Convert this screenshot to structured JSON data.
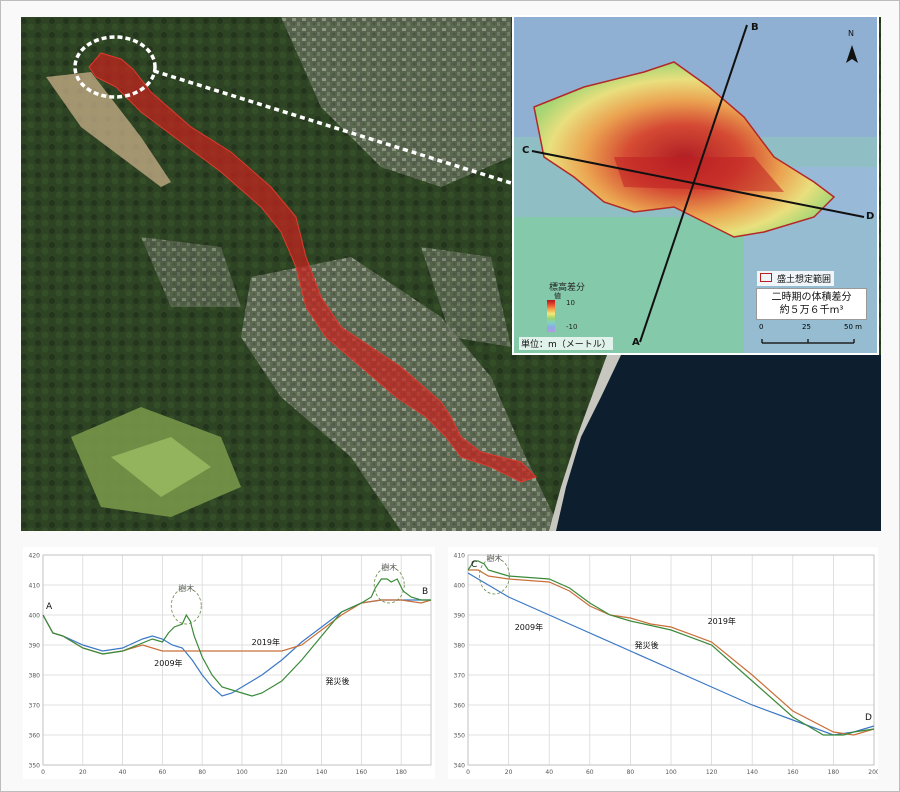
{
  "map": {
    "legend": {
      "title": "標高差分",
      "sub": "値",
      "max": "10",
      "min": "-10"
    },
    "unit_note": "単位：m（メートル）",
    "mori_label": "盛土想定範囲",
    "volume_line1": "二時期の体積差分",
    "volume_line2": "約５万６千m³",
    "scale": {
      "t0": "0",
      "t25": "25",
      "t50": "50 m"
    },
    "north": "N",
    "points": {
      "A": "A",
      "B": "B",
      "C": "C",
      "D": "D"
    },
    "colors": {
      "flow": "#c8221f",
      "embankment_outline": "#b62020",
      "section_line": "#111111"
    }
  },
  "chart_data": [
    {
      "type": "line",
      "title": "",
      "xlabel": "",
      "ylabel": "",
      "xlim": [
        0,
        195
      ],
      "ylim": [
        350,
        420
      ],
      "xticks": [
        0,
        20,
        40,
        60,
        80,
        100,
        120,
        140,
        160,
        180
      ],
      "yticks": [
        350,
        360,
        370,
        380,
        390,
        400,
        410,
        420
      ],
      "grid": true,
      "start_label": "A",
      "end_label": "B",
      "series": [
        {
          "name": "2009年",
          "color": "#3b78c4",
          "x": [
            0,
            5,
            10,
            20,
            30,
            40,
            50,
            55,
            60,
            65,
            70,
            75,
            80,
            85,
            90,
            95,
            100,
            110,
            120,
            130,
            140,
            150,
            160,
            170,
            180,
            190,
            195
          ],
          "y": [
            400,
            394,
            393,
            390,
            388,
            389,
            392,
            393,
            392,
            390,
            389,
            385,
            380,
            376,
            373,
            374,
            376,
            380,
            385,
            391,
            396,
            401,
            404,
            405,
            405,
            405,
            405
          ]
        },
        {
          "name": "2019年",
          "color": "#c8703a",
          "x": [
            0,
            5,
            10,
            20,
            30,
            40,
            50,
            60,
            70,
            80,
            100,
            120,
            130,
            140,
            150,
            160,
            170,
            180,
            190,
            195
          ],
          "y": [
            400,
            394,
            393,
            389,
            387,
            388,
            390,
            388,
            388,
            388,
            388,
            388,
            390,
            395,
            400,
            404,
            405,
            405,
            404,
            405
          ]
        },
        {
          "name": "発災後",
          "color": "#3a8a3a",
          "x": [
            0,
            5,
            10,
            20,
            30,
            40,
            55,
            60,
            63,
            66,
            70,
            72,
            74,
            76,
            80,
            85,
            90,
            100,
            105,
            110,
            120,
            130,
            140,
            150,
            160,
            165,
            167,
            170,
            173,
            175,
            178,
            181,
            185,
            190,
            195
          ],
          "y": [
            400,
            394,
            393,
            389,
            387,
            388,
            392,
            391,
            394,
            396,
            397,
            400,
            398,
            393,
            386,
            380,
            376,
            374,
            373,
            374,
            378,
            385,
            393,
            401,
            404,
            406,
            409,
            412,
            412,
            411,
            412,
            408,
            406,
            405,
            405
          ]
        }
      ],
      "annotations": [
        {
          "text": "樹木",
          "x": 72,
          "y": 408
        },
        {
          "text": "樹木",
          "x": 174,
          "y": 415
        },
        {
          "text": "2019年",
          "x": 112,
          "y": 390
        },
        {
          "text": "2009年",
          "x": 63,
          "y": 383
        },
        {
          "text": "発災後",
          "x": 148,
          "y": 377
        }
      ]
    },
    {
      "type": "line",
      "title": "",
      "xlabel": "",
      "ylabel": "",
      "xlim": [
        0,
        200
      ],
      "ylim": [
        340,
        410
      ],
      "xticks": [
        0,
        20,
        40,
        60,
        80,
        100,
        120,
        140,
        160,
        180,
        200
      ],
      "yticks": [
        340,
        350,
        360,
        370,
        380,
        390,
        400,
        410
      ],
      "grid": true,
      "start_label": "C",
      "end_label": "D",
      "series": [
        {
          "name": "2009年",
          "color": "#3b78c4",
          "x": [
            0,
            5,
            10,
            20,
            40,
            60,
            80,
            100,
            120,
            140,
            160,
            180,
            190,
            200
          ],
          "y": [
            404,
            402,
            400,
            396,
            390,
            384,
            378,
            372,
            366,
            360,
            355,
            350,
            351,
            353
          ]
        },
        {
          "name": "2019年",
          "color": "#c8703a",
          "x": [
            0,
            5,
            10,
            20,
            40,
            50,
            60,
            70,
            80,
            90,
            100,
            120,
            140,
            160,
            180,
            190,
            200
          ],
          "y": [
            405,
            405,
            403,
            402,
            401,
            398,
            393,
            390,
            389,
            387,
            386,
            381,
            370,
            358,
            351,
            350,
            352
          ]
        },
        {
          "name": "発災後",
          "color": "#3a8a3a",
          "x": [
            0,
            3,
            5,
            8,
            10,
            15,
            20,
            40,
            50,
            60,
            70,
            80,
            100,
            120,
            140,
            160,
            175,
            185,
            190,
            200
          ],
          "y": [
            405,
            408,
            408,
            407,
            405,
            404,
            403,
            402,
            399,
            394,
            390,
            388,
            385,
            380,
            368,
            356,
            350,
            350,
            351,
            352
          ]
        }
      ],
      "annotations": [
        {
          "text": "樹木",
          "x": 13,
          "y": 408
        },
        {
          "text": "2019年",
          "x": 125,
          "y": 387
        },
        {
          "text": "2009年",
          "x": 30,
          "y": 385
        },
        {
          "text": "発災後",
          "x": 88,
          "y": 379
        }
      ]
    }
  ]
}
